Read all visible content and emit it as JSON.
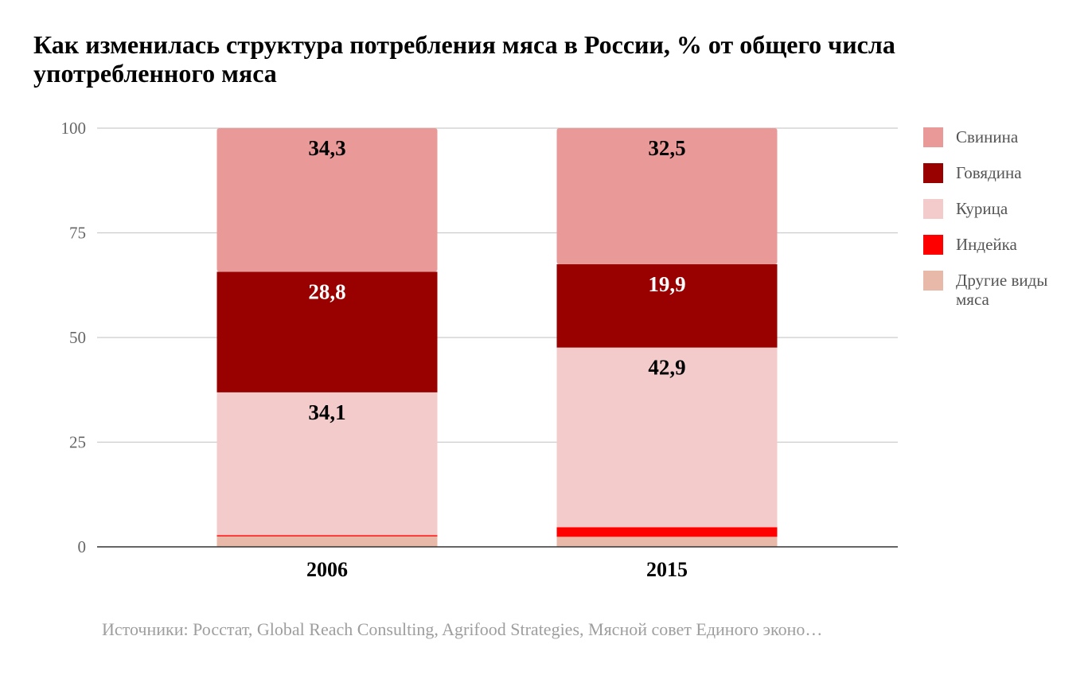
{
  "chart_data": {
    "type": "bar",
    "stacked": true,
    "title": "Как изменилась структура потребления мяса в России, % от общего числа употребленного мяса",
    "categories": [
      "2006",
      "2015"
    ],
    "series": [
      {
        "name": "Другие виды мяса",
        "color": "#e8b8a8",
        "values": [
          2.5,
          2.4
        ]
      },
      {
        "name": "Индейка",
        "color": "#ff0000",
        "values": [
          0.3,
          2.3
        ]
      },
      {
        "name": "Курица",
        "color": "#f3cbcb",
        "values": [
          34.1,
          42.9
        ],
        "labels": [
          "34,1",
          "42,9"
        ],
        "label_color": "#000000"
      },
      {
        "name": "Говядина",
        "color": "#990000",
        "values": [
          28.8,
          19.9
        ],
        "labels": [
          "28,8",
          "19,9"
        ],
        "label_color": "#ffffff"
      },
      {
        "name": "Свинина",
        "color": "#ea9999",
        "values": [
          34.3,
          32.5
        ],
        "labels": [
          "34,3",
          "32,5"
        ],
        "label_color": "#000000"
      }
    ],
    "yticks": [
      "0",
      "25",
      "50",
      "75",
      "100"
    ],
    "ylim": [
      0,
      100
    ],
    "grid": true,
    "legend": {
      "position": "right",
      "items": [
        {
          "label": "Свинина",
          "color": "#ea9999"
        },
        {
          "label": "Говядина",
          "color": "#990000"
        },
        {
          "label": "Курица",
          "color": "#f3cbcb"
        },
        {
          "label": "Индейка",
          "color": "#ff0000"
        },
        {
          "label": "Другие виды мяса",
          "color": "#e8b8a8"
        }
      ]
    },
    "source": "Источники: Росстат, Global Reach Consulting, Agrifood Strategies, Мясной совет Единого эконо…"
  }
}
